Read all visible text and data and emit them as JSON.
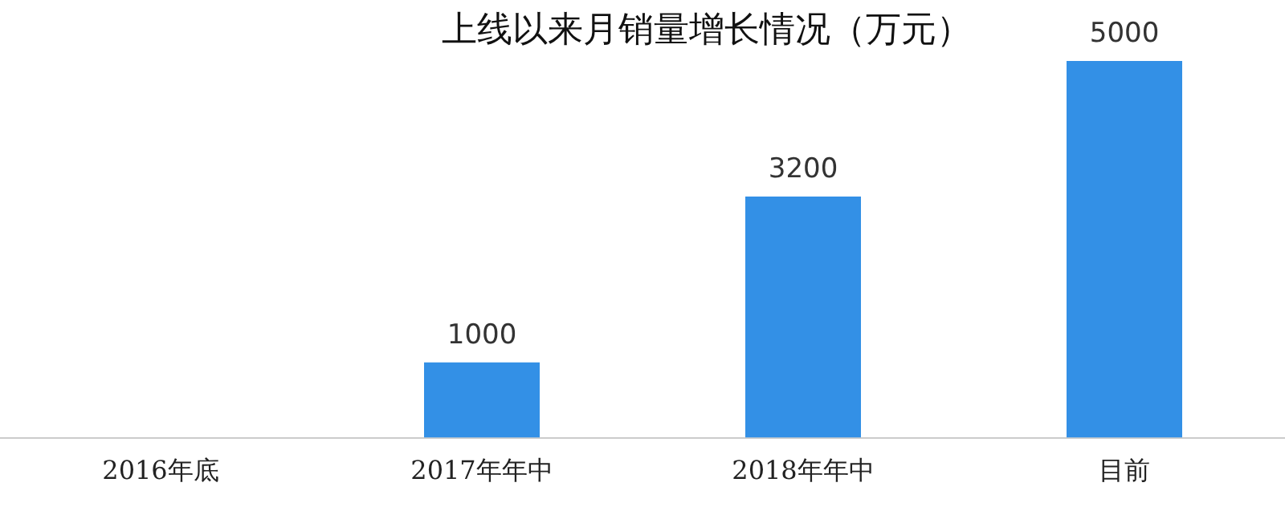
{
  "chart_data": {
    "type": "bar",
    "title": "上线以来月销量增长情况（万元）",
    "categories": [
      "2016年底",
      "2017年年中",
      "2018年年中",
      "目前"
    ],
    "values": [
      0,
      1000,
      3200,
      5000
    ],
    "color": "#3390e6",
    "value_labels": [
      null,
      "1000",
      "3200",
      "5000"
    ],
    "grid": false,
    "legend": false
  }
}
